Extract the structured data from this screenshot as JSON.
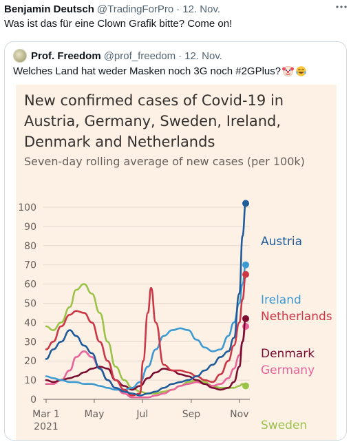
{
  "tweet": {
    "author_name": "Benjamin Deutsch",
    "author_handle": "@TradingForPro",
    "separator": "·",
    "date": "12. Nov.",
    "more_icon": "more-horizontal-icon",
    "text": "Was ist das für eine Clown Grafik bitte? Come on!"
  },
  "quote": {
    "author_name": "Prof. Freedom",
    "author_handle": "@prof_freedom",
    "separator": "·",
    "date": "12. Nov.",
    "text": "Welches Land hat weder Masken noch 3G noch #2GPlus?",
    "emojis": [
      "clown-face-emoji",
      "tears-of-joy-emoji"
    ]
  },
  "chart_data": {
    "type": "line",
    "title": "New confirmed cases of Covid-19 in Austria, Germany, Sweden, Ireland, Denmark and Netherlands",
    "subtitle": "Seven-day rolling average of new cases (per 100k)",
    "xlabel": "",
    "ylabel": "",
    "ylim": [
      0,
      100
    ],
    "yticks": [
      0,
      10,
      20,
      30,
      40,
      50,
      60,
      70,
      80,
      90,
      100
    ],
    "xticks": [
      {
        "label": "Mar 1",
        "sublabel": "2021",
        "x": "2021-03-01"
      },
      {
        "label": "May",
        "x": "2021-05-01"
      },
      {
        "label": "Jul",
        "x": "2021-07-01"
      },
      {
        "label": "Sep",
        "x": "2021-09-01"
      },
      {
        "label": "Nov",
        "x": "2021-11-01"
      }
    ],
    "grid": true,
    "legend": "end-of-line labels",
    "series": [
      {
        "name": "Austria",
        "color": "#1f5c99",
        "x": [
          "2021-03-01",
          "2021-03-10",
          "2021-03-20",
          "2021-03-31",
          "2021-04-08",
          "2021-04-18",
          "2021-04-28",
          "2021-05-08",
          "2021-05-18",
          "2021-05-28",
          "2021-06-08",
          "2021-06-18",
          "2021-06-28",
          "2021-07-08",
          "2021-07-18",
          "2021-07-28",
          "2021-08-08",
          "2021-08-18",
          "2021-08-28",
          "2021-09-08",
          "2021-09-18",
          "2021-09-28",
          "2021-10-08",
          "2021-10-18",
          "2021-10-25",
          "2021-11-01",
          "2021-11-05",
          "2021-11-09"
        ],
        "values": [
          21,
          26,
          30,
          36,
          33,
          28,
          24,
          16,
          10,
          6,
          4,
          3,
          2,
          3,
          4,
          6,
          8,
          9,
          10,
          12,
          15,
          18,
          22,
          25,
          32,
          55,
          85,
          102
        ]
      },
      {
        "name": "Ireland",
        "color": "#3d9ad1",
        "x": [
          "2021-03-01",
          "2021-03-10",
          "2021-03-20",
          "2021-03-31",
          "2021-04-08",
          "2021-04-18",
          "2021-04-28",
          "2021-05-08",
          "2021-05-18",
          "2021-05-28",
          "2021-06-08",
          "2021-06-18",
          "2021-06-28",
          "2021-07-08",
          "2021-07-18",
          "2021-07-28",
          "2021-08-08",
          "2021-08-18",
          "2021-08-28",
          "2021-09-08",
          "2021-09-18",
          "2021-09-28",
          "2021-10-08",
          "2021-10-18",
          "2021-10-25",
          "2021-11-01",
          "2021-11-05",
          "2021-11-09"
        ],
        "values": [
          12,
          11,
          10,
          9,
          9,
          8,
          8,
          7,
          6,
          5,
          5,
          6,
          9,
          17,
          26,
          33,
          36,
          37,
          36,
          31,
          27,
          25,
          26,
          33,
          40,
          50,
          60,
          70
        ]
      },
      {
        "name": "Netherlands",
        "color": "#cc3745",
        "x": [
          "2021-03-01",
          "2021-03-10",
          "2021-03-20",
          "2021-03-31",
          "2021-04-08",
          "2021-04-18",
          "2021-04-28",
          "2021-05-08",
          "2021-05-18",
          "2021-05-28",
          "2021-06-08",
          "2021-06-18",
          "2021-06-28",
          "2021-07-02",
          "2021-07-08",
          "2021-07-12",
          "2021-07-18",
          "2021-07-28",
          "2021-08-08",
          "2021-08-18",
          "2021-08-28",
          "2021-09-08",
          "2021-09-18",
          "2021-09-28",
          "2021-10-08",
          "2021-10-18",
          "2021-10-25",
          "2021-11-01",
          "2021-11-05",
          "2021-11-09"
        ],
        "values": [
          26,
          30,
          38,
          44,
          46,
          45,
          40,
          30,
          20,
          10,
          5,
          2,
          3,
          20,
          45,
          58,
          40,
          18,
          15,
          15,
          14,
          12,
          10,
          9,
          13,
          20,
          28,
          40,
          52,
          65
        ]
      },
      {
        "name": "Denmark",
        "color": "#7a0c30",
        "x": [
          "2021-03-01",
          "2021-03-10",
          "2021-03-20",
          "2021-03-31",
          "2021-04-08",
          "2021-04-18",
          "2021-04-28",
          "2021-05-08",
          "2021-05-18",
          "2021-05-28",
          "2021-06-08",
          "2021-06-18",
          "2021-06-28",
          "2021-07-08",
          "2021-07-18",
          "2021-07-28",
          "2021-08-08",
          "2021-08-18",
          "2021-08-28",
          "2021-09-08",
          "2021-09-18",
          "2021-09-28",
          "2021-10-08",
          "2021-10-18",
          "2021-10-25",
          "2021-11-01",
          "2021-11-05",
          "2021-11-09"
        ],
        "values": [
          10,
          9,
          10,
          11,
          12,
          14,
          16,
          17,
          16,
          10,
          7,
          5,
          7,
          11,
          14,
          16,
          15,
          13,
          12,
          10,
          8,
          6,
          5,
          6,
          9,
          17,
          30,
          42
        ]
      },
      {
        "name": "Germany",
        "color": "#e8639a",
        "x": [
          "2021-03-01",
          "2021-03-10",
          "2021-03-20",
          "2021-03-31",
          "2021-04-08",
          "2021-04-18",
          "2021-04-28",
          "2021-05-08",
          "2021-05-18",
          "2021-05-28",
          "2021-06-08",
          "2021-06-18",
          "2021-06-28",
          "2021-07-08",
          "2021-07-18",
          "2021-07-28",
          "2021-08-08",
          "2021-08-18",
          "2021-08-28",
          "2021-09-08",
          "2021-09-18",
          "2021-09-28",
          "2021-10-08",
          "2021-10-18",
          "2021-10-25",
          "2021-11-01",
          "2021-11-05",
          "2021-11-09"
        ],
        "values": [
          8,
          8,
          10,
          15,
          22,
          25,
          22,
          16,
          10,
          6,
          3,
          1,
          1,
          1,
          2,
          3,
          5,
          7,
          8,
          9,
          8,
          7,
          8,
          11,
          16,
          23,
          30,
          38
        ]
      },
      {
        "name": "Sweden",
        "color": "#9bc249",
        "x": [
          "2021-03-01",
          "2021-03-10",
          "2021-03-20",
          "2021-03-31",
          "2021-04-08",
          "2021-04-18",
          "2021-04-28",
          "2021-05-08",
          "2021-05-18",
          "2021-05-28",
          "2021-06-08",
          "2021-06-18",
          "2021-06-28",
          "2021-07-08",
          "2021-07-18",
          "2021-07-28",
          "2021-08-08",
          "2021-08-18",
          "2021-08-28",
          "2021-09-08",
          "2021-09-18",
          "2021-09-28",
          "2021-10-08",
          "2021-10-18",
          "2021-10-25",
          "2021-11-01",
          "2021-11-05",
          "2021-11-09"
        ],
        "values": [
          38,
          36,
          40,
          48,
          57,
          60,
          55,
          45,
          30,
          17,
          10,
          6,
          4,
          3,
          3,
          4,
          5,
          7,
          9,
          10,
          9,
          7,
          6,
          6,
          6,
          7,
          8,
          7
        ]
      }
    ]
  }
}
